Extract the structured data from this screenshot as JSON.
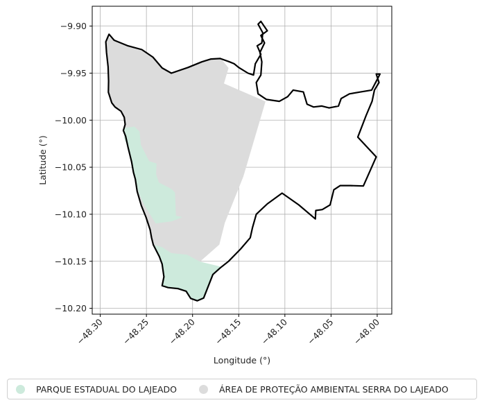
{
  "colors": {
    "parque": "#cdeadc",
    "apa": "#dcdcdc",
    "outline": "#000000",
    "grid": "#b0b0b0"
  },
  "map": {
    "xlabel": "Longitude (°)",
    "ylabel": "Latitude (°)",
    "xlim": [
      -48.3087,
      -47.9842
    ],
    "ylim": [
      -10.2062,
      -9.8789
    ],
    "x_ticks": [
      -48.3,
      -48.25,
      -48.2,
      -48.15,
      -48.1,
      -48.05,
      -48.0
    ],
    "x_tick_labels": [
      "−48.30",
      "−48.25",
      "−48.20",
      "−48.15",
      "−48.10",
      "−48.05",
      "−48.00"
    ],
    "y_ticks": [
      -9.9,
      -9.95,
      -10.0,
      -10.05,
      -10.1,
      -10.15,
      -10.2
    ],
    "y_tick_labels": [
      "−9.90",
      "−9.95",
      "−10.00",
      "−10.05",
      "−10.10",
      "−10.15",
      "−10.20"
    ],
    "grid": true,
    "legend_placement": "bottom",
    "layers": [
      {
        "name": "ÁREA DE PROTEÇÃO AMBIENTAL SERRA DO LAJEADO",
        "color": "#dcdcdc",
        "polygon": [
          [
            -48.2925,
            -9.9106
          ],
          [
            -48.294,
            -9.9167
          ],
          [
            -48.2932,
            -9.928
          ],
          [
            -48.2915,
            -9.9433
          ],
          [
            -48.291,
            -9.9583
          ],
          [
            -48.2912,
            -9.9703
          ],
          [
            -48.2875,
            -9.9816
          ],
          [
            -48.284,
            -9.986
          ],
          [
            -48.2775,
            -9.9905
          ],
          [
            -48.274,
            -9.997
          ],
          [
            -48.273,
            -10.0045
          ],
          [
            -48.275,
            -10.011
          ],
          [
            -48.2725,
            -10.0171
          ],
          [
            -48.27,
            -10.0283
          ],
          [
            -48.266,
            -10.0443
          ],
          [
            -48.264,
            -10.0556
          ],
          [
            -48.262,
            -10.0628
          ],
          [
            -48.26,
            -10.0757
          ],
          [
            -48.2555,
            -10.0908
          ],
          [
            -48.2505,
            -10.103
          ],
          [
            -48.246,
            -10.1165
          ],
          [
            -48.2445,
            -10.1248
          ],
          [
            -48.243,
            -10.1325
          ],
          [
            -48.2375,
            -10.1368
          ],
          [
            -48.231,
            -10.1375
          ],
          [
            -48.223,
            -10.1413
          ],
          [
            -48.192,
            -10.1504
          ],
          [
            -48.171,
            -10.1323
          ],
          [
            -48.165,
            -10.109
          ],
          [
            -48.145,
            -10.06
          ],
          [
            -48.121,
            -9.9801
          ],
          [
            -48.166,
            -9.961
          ],
          [
            -48.161,
            -9.9445
          ],
          [
            -48.17,
            -9.9335
          ],
          [
            -48.18,
            -9.935
          ],
          [
            -48.19,
            -9.938
          ],
          [
            -48.205,
            -9.944
          ],
          [
            -48.223,
            -9.95
          ],
          [
            -48.233,
            -9.9445
          ],
          [
            -48.243,
            -9.933
          ],
          [
            -48.255,
            -9.925
          ],
          [
            -48.27,
            -9.921
          ],
          [
            -48.285,
            -9.915
          ]
        ]
      },
      {
        "name": "PARQUE ESTADUAL DO LAJEADO",
        "color": "#cdeadc",
        "polygon": [
          [
            -48.274,
            -10.0083
          ],
          [
            -48.263,
            -10.0068
          ],
          [
            -48.2575,
            -10.012
          ],
          [
            -48.256,
            -10.0263
          ],
          [
            -48.247,
            -10.0436
          ],
          [
            -48.239,
            -10.0461
          ],
          [
            -48.2395,
            -10.0573
          ],
          [
            -48.2365,
            -10.0662
          ],
          [
            -48.223,
            -10.0731
          ],
          [
            -48.219,
            -10.0769
          ],
          [
            -48.218,
            -10.1016
          ],
          [
            -48.211,
            -10.103
          ],
          [
            -48.222,
            -10.1074
          ],
          [
            -48.24,
            -10.1098
          ],
          [
            -48.252,
            -10.0908
          ],
          [
            -48.258,
            -10.0781
          ],
          [
            -48.262,
            -10.0628
          ],
          [
            -48.266,
            -10.0443
          ],
          [
            -48.27,
            -10.0283
          ],
          [
            -48.274,
            -10.02
          ]
        ]
      },
      {
        "name": "PARQUE ESTADUAL DO LAJEADO",
        "color": "#cdeadc",
        "polygon": [
          [
            -48.2425,
            -10.1325
          ],
          [
            -48.236,
            -10.145
          ],
          [
            -48.233,
            -10.153
          ],
          [
            -48.231,
            -10.1665
          ],
          [
            -48.233,
            -10.176
          ],
          [
            -48.2265,
            -10.178
          ],
          [
            -48.216,
            -10.179
          ],
          [
            -48.207,
            -10.1818
          ],
          [
            -48.202,
            -10.1895
          ],
          [
            -48.195,
            -10.192
          ],
          [
            -48.188,
            -10.189
          ],
          [
            -48.178,
            -10.164
          ],
          [
            -48.169,
            -10.1558
          ],
          [
            -48.192,
            -10.1504
          ],
          [
            -48.206,
            -10.143
          ],
          [
            -48.223,
            -10.1413
          ],
          [
            -48.233,
            -10.135
          ]
        ]
      }
    ],
    "boundary": [
      [
        -48.2905,
        -9.9087
      ],
      [
        -48.294,
        -9.9167
      ],
      [
        -48.2932,
        -9.928
      ],
      [
        -48.2915,
        -9.9433
      ],
      [
        -48.291,
        -9.9583
      ],
      [
        -48.2912,
        -9.9703
      ],
      [
        -48.2875,
        -9.9816
      ],
      [
        -48.284,
        -9.986
      ],
      [
        -48.2775,
        -9.9905
      ],
      [
        -48.274,
        -9.997
      ],
      [
        -48.273,
        -10.0045
      ],
      [
        -48.275,
        -10.011
      ],
      [
        -48.2725,
        -10.0171
      ],
      [
        -48.27,
        -10.0283
      ],
      [
        -48.266,
        -10.0443
      ],
      [
        -48.264,
        -10.0556
      ],
      [
        -48.262,
        -10.0628
      ],
      [
        -48.26,
        -10.0757
      ],
      [
        -48.2555,
        -10.0908
      ],
      [
        -48.2505,
        -10.103
      ],
      [
        -48.246,
        -10.1165
      ],
      [
        -48.2445,
        -10.1248
      ],
      [
        -48.2425,
        -10.1325
      ],
      [
        -48.236,
        -10.145
      ],
      [
        -48.233,
        -10.153
      ],
      [
        -48.231,
        -10.1665
      ],
      [
        -48.233,
        -10.176
      ],
      [
        -48.2265,
        -10.178
      ],
      [
        -48.216,
        -10.179
      ],
      [
        -48.207,
        -10.1818
      ],
      [
        -48.202,
        -10.1895
      ],
      [
        -48.195,
        -10.192
      ],
      [
        -48.188,
        -10.189
      ],
      [
        -48.178,
        -10.164
      ],
      [
        -48.17,
        -10.157
      ],
      [
        -48.161,
        -10.15
      ],
      [
        -48.148,
        -10.137
      ],
      [
        -48.1375,
        -10.125
      ],
      [
        -48.135,
        -10.114
      ],
      [
        -48.131,
        -10.1
      ],
      [
        -48.119,
        -10.089
      ],
      [
        -48.103,
        -10.0776
      ],
      [
        -48.085,
        -10.09
      ],
      [
        -48.067,
        -10.105
      ],
      [
        -48.0665,
        -10.096
      ],
      [
        -48.0595,
        -10.095
      ],
      [
        -48.051,
        -10.09
      ],
      [
        -48.047,
        -10.074
      ],
      [
        -48.04,
        -10.0695
      ],
      [
        -48.029,
        -10.0695
      ],
      [
        -48.015,
        -10.07
      ],
      [
        -48.001,
        -10.039
      ],
      [
        -48.021,
        -10.018
      ],
      [
        -48.012,
        -9.995
      ],
      [
        -48.0055,
        -9.98
      ],
      [
        -48.003,
        -9.968
      ],
      [
        -47.998,
        -9.96
      ],
      [
        -48.001,
        -9.951
      ],
      [
        -47.997,
        -9.951
      ],
      [
        -48.006,
        -9.968
      ],
      [
        -48.018,
        -9.97
      ],
      [
        -48.03,
        -9.972
      ],
      [
        -48.039,
        -9.977
      ],
      [
        -48.042,
        -9.985
      ],
      [
        -48.052,
        -9.987
      ],
      [
        -48.06,
        -9.985
      ],
      [
        -48.069,
        -9.986
      ],
      [
        -48.076,
        -9.983
      ],
      [
        -48.08,
        -9.97
      ],
      [
        -48.091,
        -9.968
      ],
      [
        -48.097,
        -9.975
      ],
      [
        -48.106,
        -9.98
      ],
      [
        -48.12,
        -9.978
      ],
      [
        -48.129,
        -9.972
      ],
      [
        -48.131,
        -9.96
      ],
      [
        -48.126,
        -9.952
      ],
      [
        -48.125,
        -9.938
      ],
      [
        -48.127,
        -9.928
      ],
      [
        -48.122,
        -9.918
      ],
      [
        -48.126,
        -9.91
      ],
      [
        -48.119,
        -9.905
      ],
      [
        -48.126,
        -9.895
      ],
      [
        -48.129,
        -9.898
      ],
      [
        -48.124,
        -9.907
      ],
      [
        -48.125,
        -9.918
      ],
      [
        -48.13,
        -9.921
      ],
      [
        -48.126,
        -9.93
      ],
      [
        -48.132,
        -9.94
      ],
      [
        -48.134,
        -9.952
      ],
      [
        -48.14,
        -9.95
      ],
      [
        -48.15,
        -9.944
      ],
      [
        -48.155,
        -9.94
      ],
      [
        -48.16,
        -9.938
      ],
      [
        -48.17,
        -9.9345
      ],
      [
        -48.18,
        -9.935
      ],
      [
        -48.19,
        -9.938
      ],
      [
        -48.205,
        -9.944
      ],
      [
        -48.223,
        -9.95
      ],
      [
        -48.233,
        -9.9445
      ],
      [
        -48.243,
        -9.933
      ],
      [
        -48.255,
        -9.925
      ],
      [
        -48.27,
        -9.921
      ],
      [
        -48.285,
        -9.915
      ],
      [
        -48.2905,
        -9.9087
      ]
    ]
  },
  "legend": {
    "items": [
      {
        "label": "PARQUE ESTADUAL DO LAJEADO",
        "color": "#cdeadc"
      },
      {
        "label": "ÁREA DE PROTEÇÃO AMBIENTAL SERRA DO LAJEADO",
        "color": "#dcdcdc"
      }
    ]
  }
}
